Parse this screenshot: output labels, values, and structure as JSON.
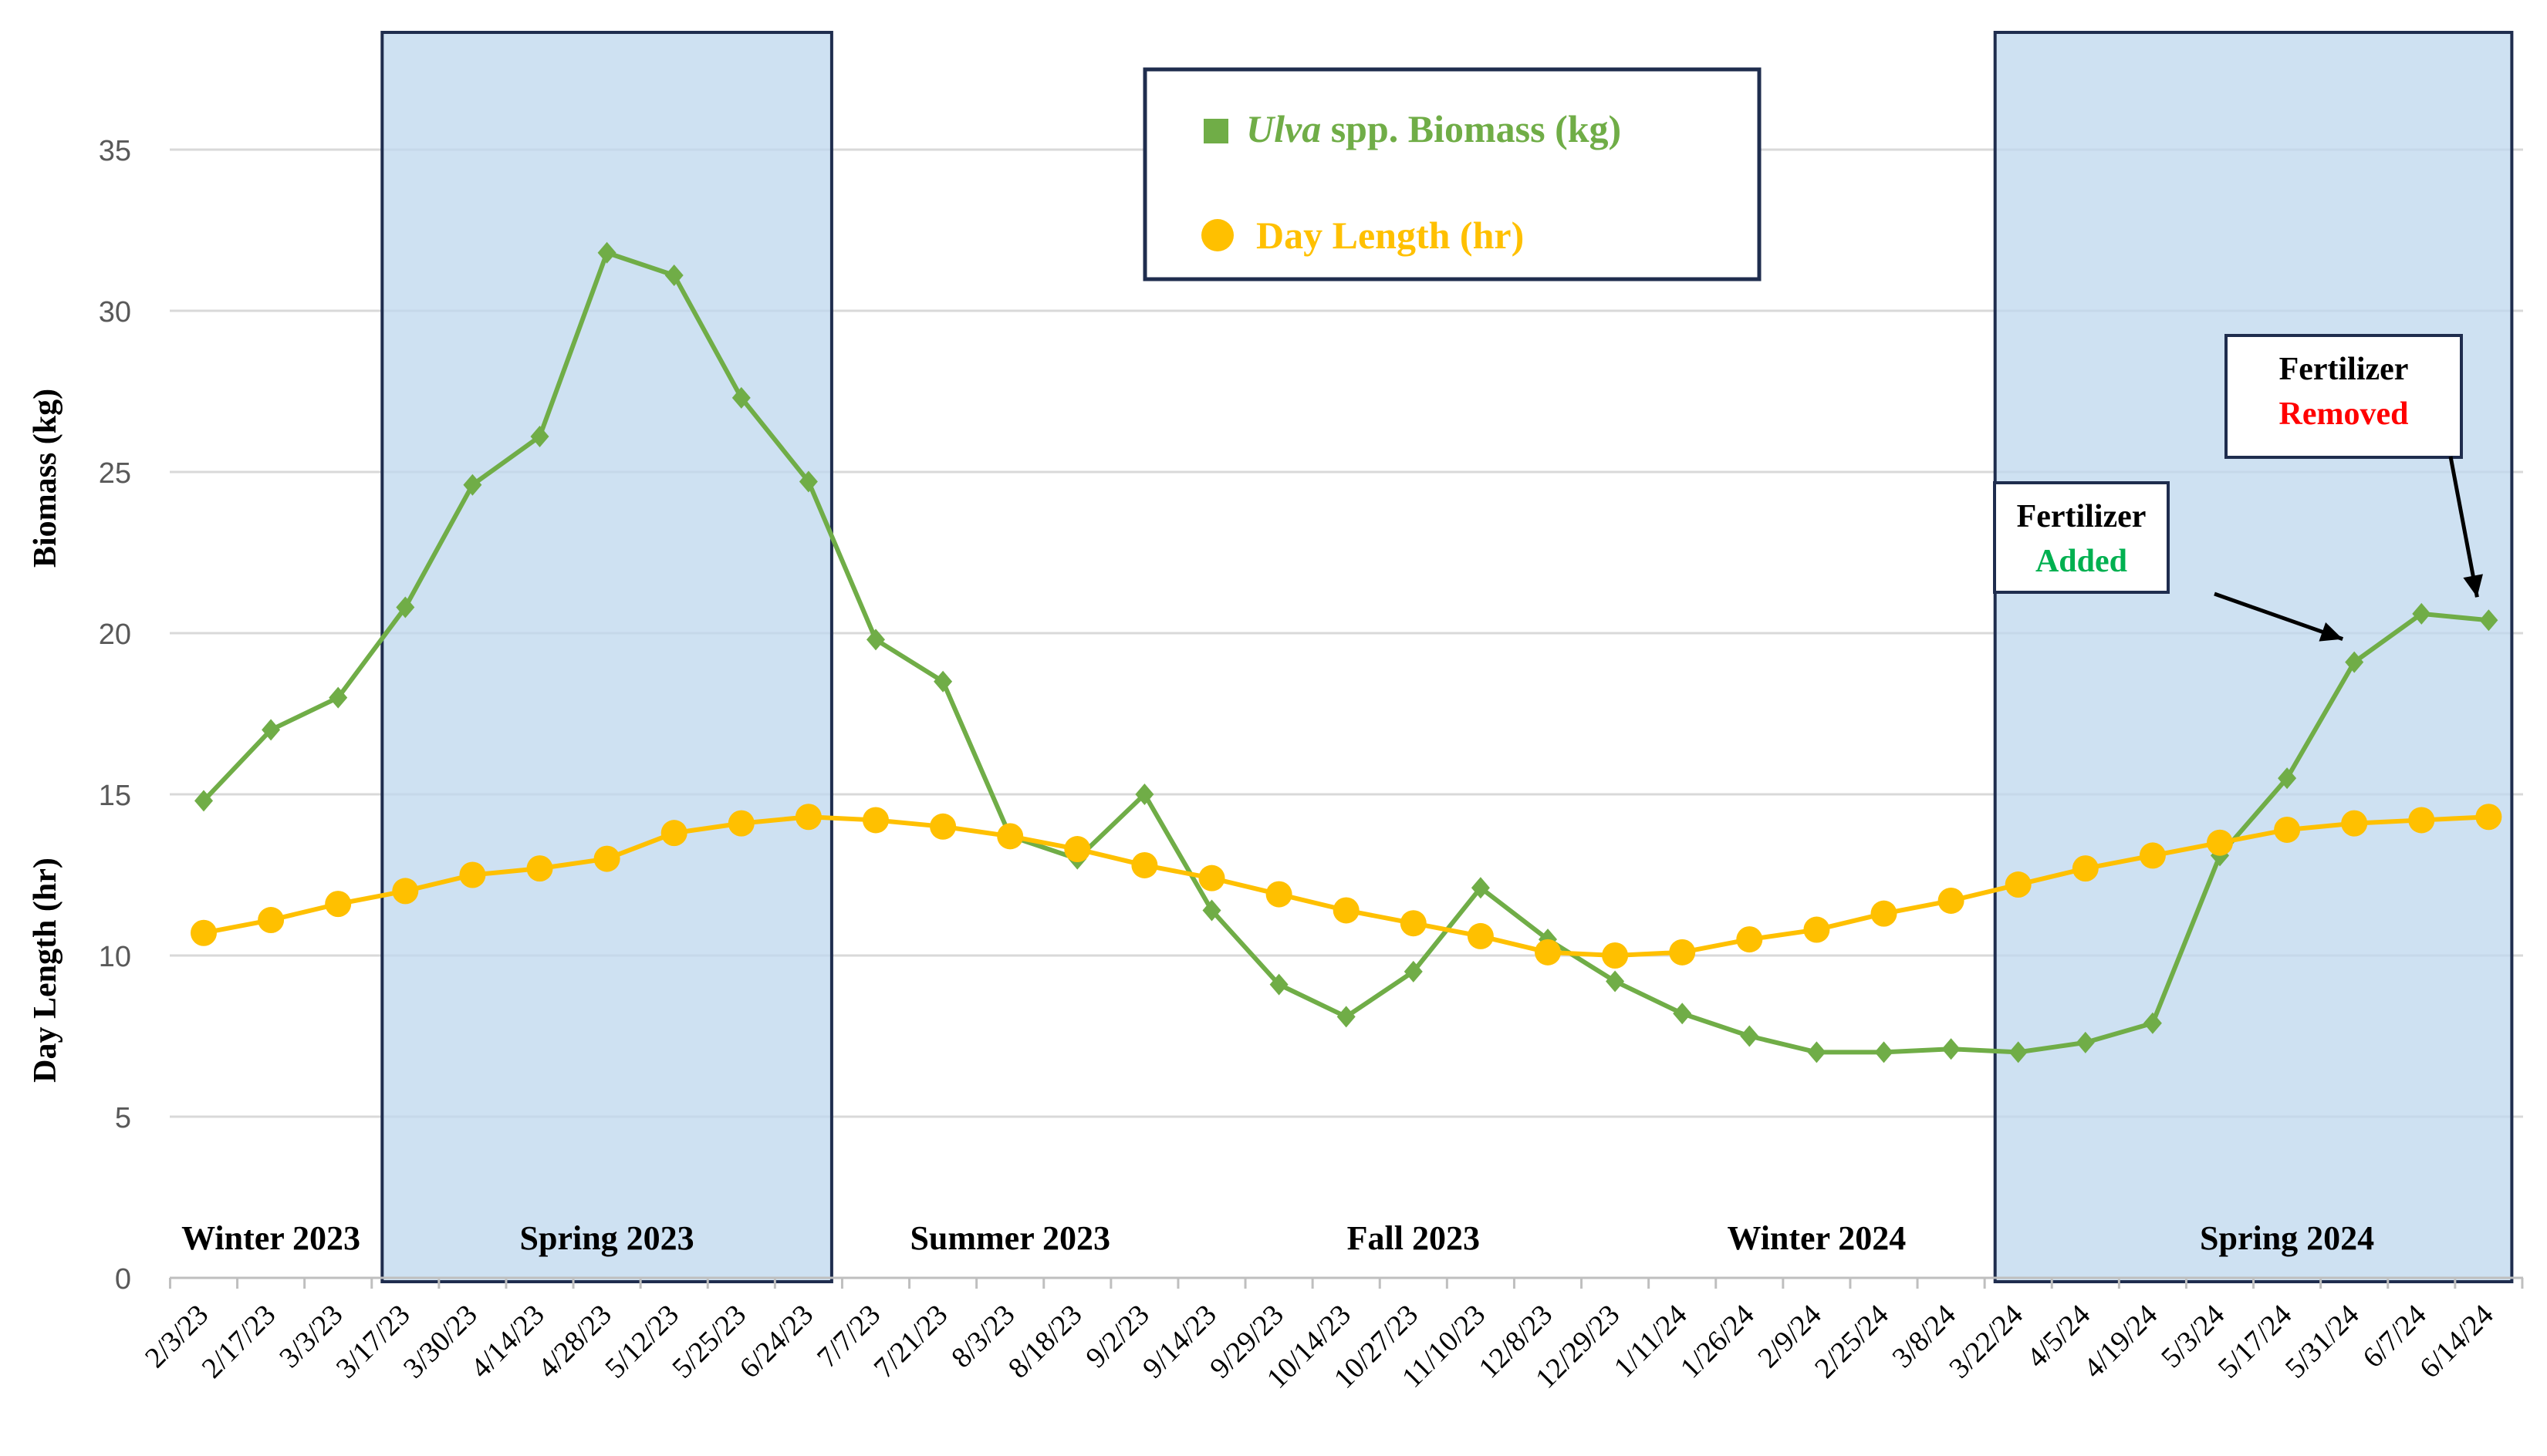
{
  "chart_data": {
    "type": "line",
    "x": [
      "2/3/23",
      "2/17/23",
      "3/3/23",
      "3/17/23",
      "3/30/23",
      "4/14/23",
      "4/28/23",
      "5/12/23",
      "5/25/23",
      "6/24/23",
      "7/7/23",
      "7/21/23",
      "8/3/23",
      "8/18/23",
      "9/2/23",
      "9/14/23",
      "9/29/23",
      "10/14/23",
      "10/27/23",
      "11/10/23",
      "12/8/23",
      "12/29/23",
      "1/11/24",
      "1/26/24",
      "2/9/24",
      "2/25/24",
      "3/8/24",
      "3/22/24",
      "4/5/24",
      "4/19/24",
      "5/3/24",
      "5/17/24",
      "5/31/24",
      "6/7/24",
      "6/14/24"
    ],
    "series": [
      {
        "name": "Ulva spp. Biomass (kg)",
        "name_italic": "Ulva",
        "name_rest": " spp. Biomass (kg)",
        "color": "#70ad47",
        "marker": "diamond",
        "values": [
          14.8,
          17.0,
          18.0,
          20.8,
          24.6,
          26.1,
          31.8,
          31.1,
          27.3,
          24.7,
          19.8,
          18.5,
          13.7,
          13.0,
          15.0,
          11.4,
          9.1,
          8.1,
          9.5,
          12.1,
          10.5,
          9.2,
          8.2,
          7.5,
          7.0,
          7.0,
          7.1,
          7.0,
          7.3,
          7.9,
          13.1,
          15.5,
          19.1,
          20.6,
          20.4
        ]
      },
      {
        "name": "Day Length (hr)",
        "color": "#ffc000",
        "marker": "circle",
        "values": [
          10.7,
          11.1,
          11.6,
          12.0,
          12.5,
          12.7,
          13.0,
          13.8,
          14.1,
          14.3,
          14.2,
          14.0,
          13.7,
          13.3,
          12.8,
          12.4,
          11.9,
          11.4,
          11.0,
          10.6,
          10.1,
          10.0,
          10.1,
          10.5,
          10.8,
          11.3,
          11.7,
          12.2,
          12.7,
          13.1,
          13.5,
          13.9,
          14.1,
          14.2,
          14.3
        ]
      }
    ],
    "ylabel_top": "Biomass (kg)",
    "ylabel_bottom": "Day Length (hr)",
    "ylim": [
      0,
      35
    ],
    "yticks": [
      0,
      5,
      10,
      15,
      20,
      25,
      30,
      35
    ],
    "grid": true,
    "legend_position": "top-center",
    "highlight_color": "#bdd7ee",
    "highlights": [
      {
        "from": "3/17/23",
        "to": "6/24/23"
      },
      {
        "from": "3/22/24",
        "to": "6/14/24"
      }
    ],
    "seasons": [
      {
        "label": "Winter 2023",
        "at": "2/17/23"
      },
      {
        "label": "Spring 2023",
        "at": "4/28/23"
      },
      {
        "label": "Summer 2023",
        "at": "8/3/23"
      },
      {
        "label": "Fall 2023",
        "at": "10/27/23"
      },
      {
        "label": "Winter 2024",
        "at": "2/9/24"
      },
      {
        "label": "Spring 2024",
        "at": "5/17/24"
      }
    ],
    "annotations": [
      {
        "line1": "Fertilizer",
        "line2": "Added",
        "line2_color": "#00b050",
        "target": "5/31/24"
      },
      {
        "line1": "Fertilizer",
        "line2": "Removed",
        "line2_color": "#ff0000",
        "target": "6/14/24"
      }
    ]
  }
}
